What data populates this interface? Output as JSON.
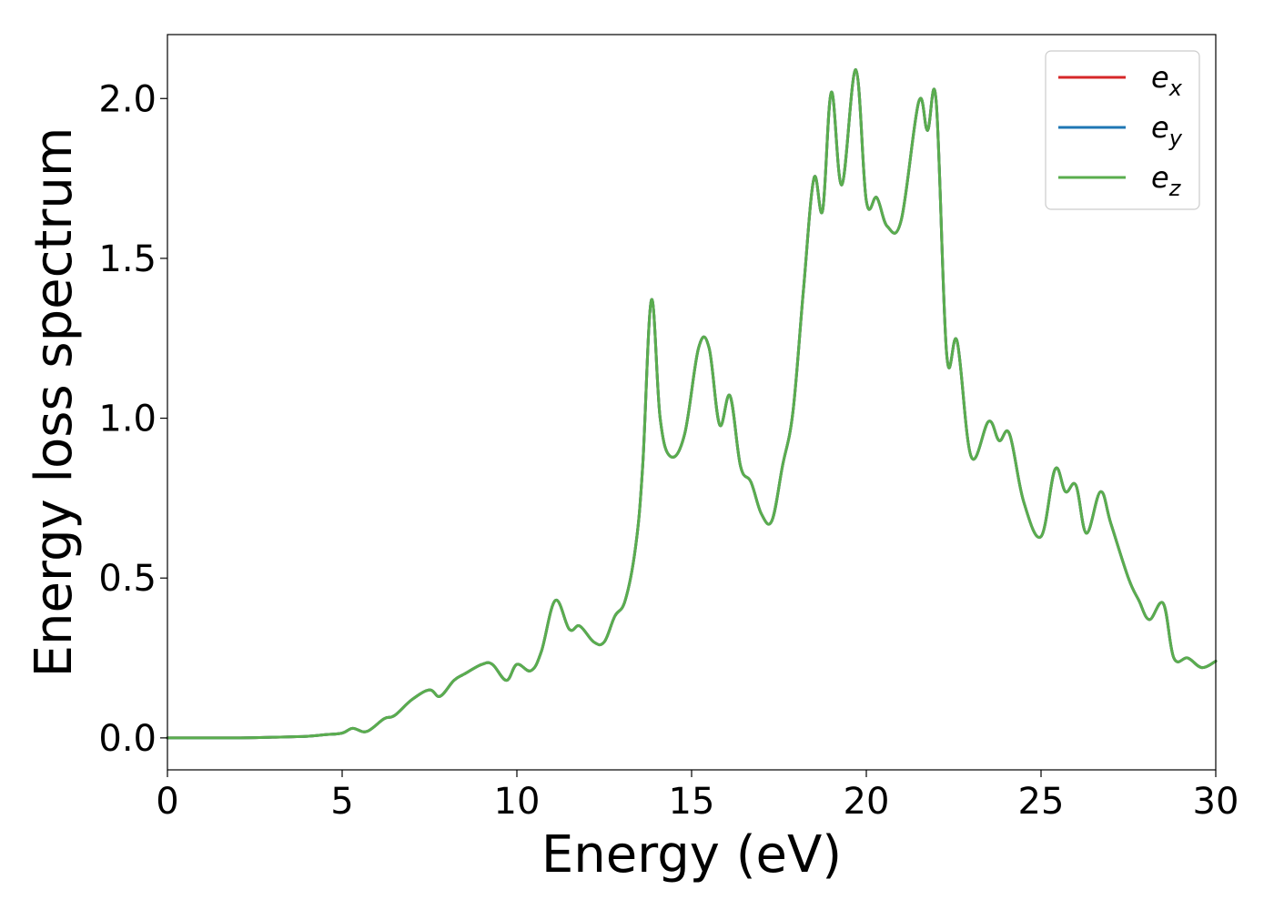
{
  "chart_data": {
    "type": "line",
    "xlabel": "Energy (eV)",
    "ylabel": "Energy loss spectrum",
    "xlim": [
      0,
      30
    ],
    "ylim": [
      -0.1,
      2.2
    ],
    "xticks": [
      "0",
      "5",
      "10",
      "15",
      "20",
      "25",
      "30"
    ],
    "yticks": [
      "0.0",
      "0.5",
      "1.0",
      "1.5",
      "2.0"
    ],
    "grid": false,
    "legend_position": "top-right",
    "x": [
      0,
      1,
      2,
      3,
      4,
      4.5,
      5,
      5.3,
      5.7,
      6.2,
      6.5,
      7.0,
      7.5,
      7.8,
      8.2,
      8.5,
      9.0,
      9.3,
      9.7,
      10.0,
      10.4,
      10.7,
      11.1,
      11.5,
      11.8,
      12.2,
      12.5,
      12.8,
      13.1,
      13.4,
      13.6,
      13.85,
      14.1,
      14.4,
      14.8,
      15.2,
      15.5,
      15.8,
      16.1,
      16.4,
      16.7,
      17.0,
      17.3,
      17.6,
      17.9,
      18.2,
      18.5,
      18.75,
      19.0,
      19.3,
      19.7,
      20.0,
      20.3,
      20.6,
      21.0,
      21.5,
      21.75,
      22.0,
      22.3,
      22.6,
      23.0,
      23.5,
      23.8,
      24.1,
      24.5,
      25.0,
      25.4,
      25.7,
      26.0,
      26.3,
      26.7,
      27.0,
      27.5,
      27.8,
      28.1,
      28.5,
      28.8,
      29.2,
      29.6,
      30.0
    ],
    "series": [
      {
        "name": "e_x",
        "color": "#d62728",
        "values": [
          0,
          0,
          0,
          0.002,
          0.005,
          0.01,
          0.015,
          0.03,
          0.02,
          0.06,
          0.07,
          0.12,
          0.15,
          0.13,
          0.18,
          0.2,
          0.23,
          0.23,
          0.18,
          0.23,
          0.21,
          0.27,
          0.43,
          0.34,
          0.35,
          0.3,
          0.3,
          0.38,
          0.43,
          0.6,
          0.85,
          1.37,
          1.0,
          0.88,
          0.95,
          1.22,
          1.22,
          0.98,
          1.07,
          0.85,
          0.8,
          0.7,
          0.68,
          0.85,
          1.02,
          1.4,
          1.75,
          1.65,
          2.02,
          1.73,
          2.09,
          1.68,
          1.69,
          1.6,
          1.62,
          1.99,
          1.9,
          1.99,
          1.2,
          1.24,
          0.88,
          0.99,
          0.93,
          0.95,
          0.74,
          0.63,
          0.84,
          0.77,
          0.79,
          0.64,
          0.77,
          0.67,
          0.5,
          0.43,
          0.37,
          0.42,
          0.25,
          0.25,
          0.22,
          0.24
        ]
      },
      {
        "name": "e_y",
        "color": "#1f77b4",
        "values": [
          0,
          0,
          0,
          0.002,
          0.005,
          0.01,
          0.015,
          0.03,
          0.02,
          0.06,
          0.07,
          0.12,
          0.15,
          0.13,
          0.18,
          0.2,
          0.23,
          0.23,
          0.18,
          0.23,
          0.21,
          0.27,
          0.43,
          0.34,
          0.35,
          0.3,
          0.3,
          0.38,
          0.43,
          0.6,
          0.85,
          1.37,
          1.0,
          0.88,
          0.95,
          1.22,
          1.22,
          0.98,
          1.07,
          0.85,
          0.8,
          0.7,
          0.68,
          0.85,
          1.02,
          1.4,
          1.75,
          1.65,
          2.02,
          1.73,
          2.09,
          1.68,
          1.69,
          1.6,
          1.62,
          1.99,
          1.9,
          1.99,
          1.2,
          1.24,
          0.88,
          0.99,
          0.93,
          0.95,
          0.74,
          0.63,
          0.84,
          0.77,
          0.79,
          0.64,
          0.77,
          0.67,
          0.5,
          0.43,
          0.37,
          0.42,
          0.25,
          0.25,
          0.22,
          0.24
        ]
      },
      {
        "name": "e_z",
        "color": "#5aad4e",
        "values": [
          0,
          0,
          0,
          0.002,
          0.005,
          0.01,
          0.015,
          0.03,
          0.02,
          0.06,
          0.07,
          0.12,
          0.15,
          0.13,
          0.18,
          0.2,
          0.23,
          0.23,
          0.18,
          0.23,
          0.21,
          0.27,
          0.43,
          0.34,
          0.35,
          0.3,
          0.3,
          0.38,
          0.43,
          0.6,
          0.85,
          1.37,
          1.0,
          0.88,
          0.95,
          1.22,
          1.22,
          0.98,
          1.07,
          0.85,
          0.8,
          0.7,
          0.68,
          0.85,
          1.02,
          1.4,
          1.75,
          1.65,
          2.02,
          1.73,
          2.09,
          1.68,
          1.69,
          1.6,
          1.62,
          1.99,
          1.9,
          1.99,
          1.2,
          1.24,
          0.88,
          0.99,
          0.93,
          0.95,
          0.74,
          0.63,
          0.84,
          0.77,
          0.79,
          0.64,
          0.77,
          0.67,
          0.5,
          0.43,
          0.37,
          0.42,
          0.25,
          0.25,
          0.22,
          0.24
        ]
      }
    ],
    "legend": [
      {
        "base": "e",
        "sub": "x",
        "color": "#d62728"
      },
      {
        "base": "e",
        "sub": "y",
        "color": "#1f77b4"
      },
      {
        "base": "e",
        "sub": "z",
        "color": "#5aad4e"
      }
    ]
  }
}
